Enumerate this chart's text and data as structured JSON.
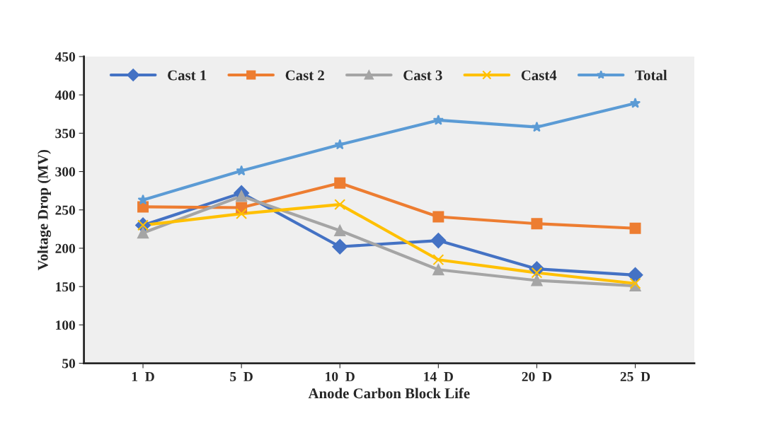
{
  "chart_data": {
    "type": "line",
    "xlabel": "Anode Carbon Block Life",
    "ylabel": "Voltage Drop (MV)",
    "categories": [
      "1  D",
      "5  D",
      "10  D",
      "14  D",
      "20  D",
      "25  D"
    ],
    "series": [
      {
        "name": "Cast 1",
        "color": "#4472c4",
        "marker": "diamond",
        "values": [
          230,
          272,
          202,
          210,
          173,
          165
        ]
      },
      {
        "name": "Cast 2",
        "color": "#ed7d31",
        "marker": "square",
        "values": [
          254,
          253,
          285,
          241,
          232,
          226
        ]
      },
      {
        "name": "Cast 3",
        "color": "#a5a5a5",
        "marker": "triangle",
        "values": [
          220,
          268,
          223,
          172,
          158,
          151
        ]
      },
      {
        "name": "Cast4",
        "color": "#ffc000",
        "marker": "cross",
        "values": [
          230,
          245,
          257,
          185,
          168,
          154
        ]
      },
      {
        "name": "Total",
        "color": "#5b9bd5",
        "marker": "star",
        "values": [
          263,
          301,
          335,
          367,
          358,
          389
        ]
      }
    ],
    "ylim": [
      50,
      450
    ],
    "yticks": [
      50,
      100,
      150,
      200,
      250,
      300,
      350,
      400,
      450
    ],
    "legend": "top",
    "grid": false
  }
}
